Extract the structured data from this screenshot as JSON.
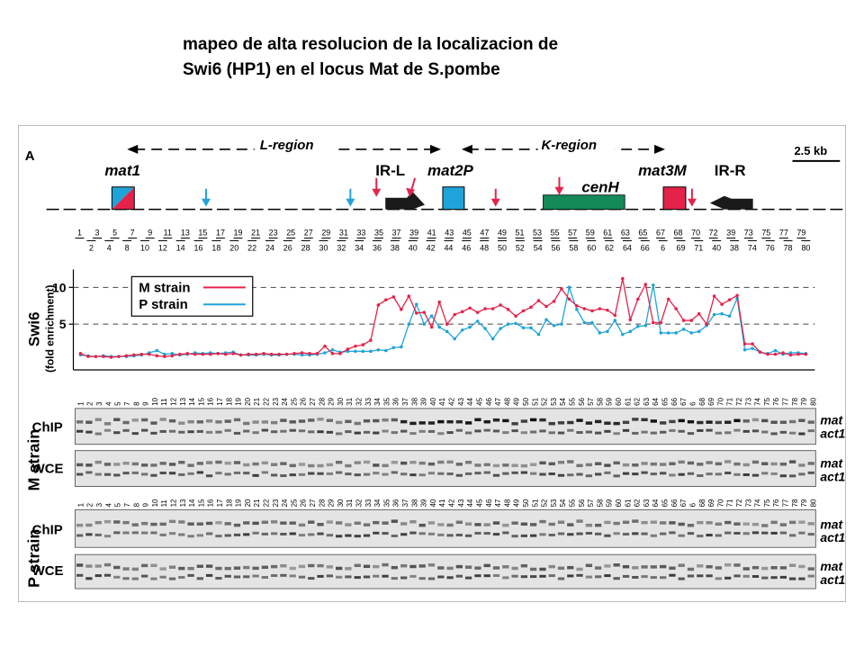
{
  "caption": {
    "line1": "mapeo de alta resolucion de la localizacion de",
    "line2": "Swi6 (HP1) en el locus Mat de S.pombe"
  },
  "figure": {
    "panel_label": "A",
    "scale_bar": "2.5 kb",
    "regions": [
      {
        "label": "L-region"
      },
      {
        "label": "K-region"
      }
    ],
    "features": {
      "mat1": "mat1",
      "irl": "IR-L",
      "mat2p": "mat2P",
      "cenh": "cenH",
      "mat3m": "mat3M",
      "irr": "IR-R"
    },
    "colors": {
      "red": "#e5234a",
      "blue": "#1fa4d9",
      "green": "#138a57",
      "black": "#1a1a1a"
    },
    "marker_numbers_top": [
      "1",
      "3",
      "5",
      "7",
      "9",
      "11",
      "13",
      "15",
      "17",
      "19",
      "21",
      "23",
      "25",
      "27",
      "29",
      "31",
      "33",
      "35",
      "37",
      "39",
      "41",
      "43",
      "45",
      "47",
      "49",
      "51",
      "53",
      "55",
      "57",
      "59",
      "61",
      "63",
      "65",
      "67",
      "68",
      "70",
      "72",
      "39",
      "73",
      "75",
      "77",
      "79"
    ],
    "marker_numbers_bottom": [
      "2",
      "4",
      "8",
      "10",
      "12",
      "14",
      "16",
      "18",
      "20",
      "22",
      "24",
      "26",
      "28",
      "30",
      "32",
      "34",
      "36",
      "38",
      "40",
      "42",
      "44",
      "46",
      "48",
      "50",
      "52",
      "54",
      "56",
      "58",
      "60",
      "62",
      "64",
      "66",
      "6",
      "69",
      "71",
      "40",
      "38",
      "74",
      "76",
      "78",
      "80"
    ],
    "gel_lanes_m": [
      "1",
      "2",
      "3",
      "4",
      "5",
      "7",
      "8",
      "9",
      "10",
      "11",
      "12",
      "13",
      "14",
      "15",
      "16",
      "17",
      "18",
      "19",
      "20",
      "21",
      "22",
      "23",
      "24",
      "25",
      "26",
      "27",
      "28",
      "29",
      "30",
      "31",
      "32",
      "33",
      "34",
      "35",
      "36",
      "37",
      "38",
      "39",
      "40",
      "41",
      "42",
      "43",
      "44",
      "45",
      "46",
      "47",
      "48",
      "49",
      "50",
      "51",
      "52",
      "53",
      "54",
      "55",
      "56",
      "57",
      "58",
      "59",
      "60",
      "61",
      "62",
      "63",
      "64",
      "65",
      "66",
      "67",
      "6",
      "68",
      "69",
      "70",
      "71",
      "72",
      "73",
      "74",
      "75",
      "76",
      "77",
      "78",
      "79",
      "80"
    ],
    "gel_lanes_p": [
      "1",
      "2",
      "3",
      "4",
      "5",
      "7",
      "8",
      "9",
      "10",
      "11",
      "12",
      "13",
      "14",
      "15",
      "16",
      "17",
      "18",
      "19",
      "20",
      "21",
      "22",
      "23",
      "24",
      "25",
      "26",
      "27",
      "28",
      "29",
      "30",
      "31",
      "32",
      "33",
      "34",
      "35",
      "36",
      "37",
      "38",
      "39",
      "40",
      "41",
      "42",
      "43",
      "44",
      "45",
      "46",
      "47",
      "48",
      "49",
      "50",
      "51",
      "52",
      "53",
      "54",
      "55",
      "56",
      "57",
      "58",
      "59",
      "60",
      "61",
      "62",
      "63",
      "64",
      "65",
      "66",
      "67",
      "6",
      "68",
      "69",
      "70",
      "71",
      "72",
      "73",
      "74",
      "75",
      "76",
      "77",
      "78",
      "79",
      "80"
    ],
    "gel_labels": {
      "m_strain": "M strain",
      "p_strain": "P strain",
      "chip": "ChIP",
      "wce": "WCE",
      "mat": "mat",
      "act1": "act1"
    }
  },
  "chart_data": {
    "type": "line",
    "ylabel": "Swi6",
    "ylabel_sub": "(fold enrichment)",
    "yticks": [
      5,
      10
    ],
    "ylim": [
      0,
      13
    ],
    "reference_lines": [
      5,
      10
    ],
    "legend_position": "top-left",
    "series": [
      {
        "name": "M strain",
        "color": "#e5234a",
        "values": [
          1.0,
          0.6,
          0.6,
          0.6,
          0.5,
          0.6,
          0.7,
          0.8,
          0.9,
          0.9,
          0.7,
          0.6,
          0.7,
          0.9,
          1.0,
          0.9,
          0.9,
          0.9,
          1.0,
          0.9,
          1.0,
          0.8,
          0.9,
          0.9,
          1.0,
          0.9,
          0.9,
          0.9,
          1.0,
          1.1,
          1.0,
          1.0,
          2.0,
          1.0,
          1.0,
          1.6,
          2.0,
          2.2,
          2.8,
          7.6,
          8.3,
          8.7,
          7.0,
          8.8,
          6.5,
          6.6,
          4.6,
          8.0,
          5.0,
          6.3,
          6.7,
          7.2,
          6.6,
          7.1,
          7.1,
          7.6,
          7.0,
          6.1,
          6.8,
          7.3,
          8.2,
          7.4,
          8.1,
          9.8,
          8.4,
          7.5,
          7.1,
          6.8,
          7.1,
          6.9,
          6.2,
          11.2,
          5.6,
          8.4,
          10.4,
          5.2,
          5.2,
          8.4,
          7.1,
          5.5,
          5.5,
          6.4,
          5.0,
          8.8,
          7.7,
          8.3,
          8.9,
          2.3,
          2.3,
          1.2,
          0.9,
          0.9,
          1.1,
          0.8,
          0.9,
          0.9
        ]
      },
      {
        "name": "P strain",
        "color": "#1fa4d9",
        "values": [
          0.8,
          0.7,
          0.6,
          0.7,
          0.6,
          0.6,
          0.6,
          0.7,
          0.8,
          1.1,
          1.4,
          0.9,
          1.0,
          0.8,
          0.9,
          1.1,
          1.0,
          1.1,
          1.0,
          1.1,
          1.2,
          0.8,
          0.8,
          0.8,
          0.9,
          0.8,
          0.8,
          0.9,
          0.9,
          0.8,
          0.8,
          0.9,
          1.1,
          1.5,
          1.2,
          1.3,
          1.3,
          1.3,
          1.3,
          1.5,
          1.4,
          1.8,
          1.9,
          5.0,
          7.7,
          5.0,
          6.1,
          4.6,
          4.0,
          3.0,
          4.2,
          4.6,
          5.4,
          4.4,
          3.0,
          4.4,
          5.0,
          5.1,
          4.5,
          4.5,
          3.6,
          5.6,
          4.8,
          5.0,
          10.0,
          7.0,
          5.2,
          5.2,
          3.8,
          4.0,
          5.5,
          3.6,
          4.0,
          4.7,
          4.8,
          10.3,
          3.8,
          3.8,
          3.8,
          4.3,
          3.8,
          4.0,
          4.8,
          6.3,
          6.4,
          6.1,
          8.5,
          1.5,
          1.7,
          1.2,
          1.0,
          1.4,
          0.9,
          1.1,
          1.1,
          1.0
        ]
      }
    ]
  }
}
